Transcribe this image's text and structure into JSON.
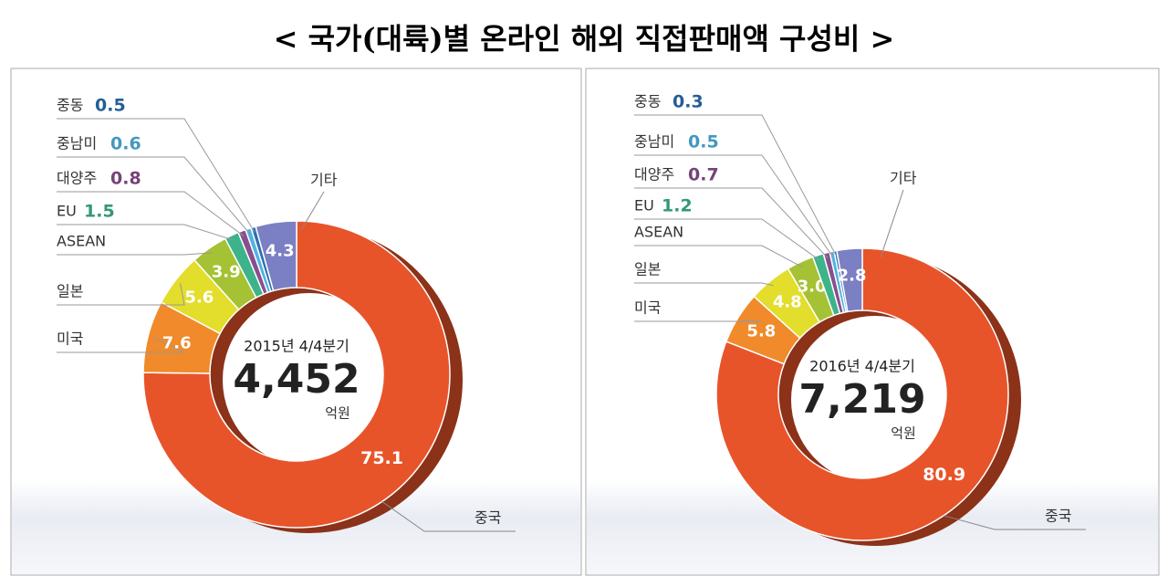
{
  "title": "< 국가(대륙)별 온라인 해외 직접판매액 구성비 >",
  "chart_data": [
    {
      "type": "pie",
      "period": "2015년 4/4분기",
      "total": "4,452",
      "unit": "억원",
      "categories": [
        "중국",
        "미국",
        "일본",
        "ASEAN",
        "EU",
        "대양주",
        "중남미",
        "중동",
        "기타"
      ],
      "values": [
        75.1,
        7.6,
        5.6,
        3.9,
        1.5,
        0.8,
        0.6,
        0.5,
        4.3
      ],
      "value_labels": [
        "75.1",
        "7.6",
        "5.6",
        "3.9",
        "1.5",
        "0.8",
        "0.6",
        "0.5",
        "4.3"
      ],
      "colors": [
        "#e8542a",
        "#f08a2a",
        "#e3dd2c",
        "#a5c234",
        "#3db38a",
        "#8a4e8e",
        "#4fb3e0",
        "#2c6fb0",
        "#7b7fc4"
      ]
    },
    {
      "type": "pie",
      "period": "2016년 4/4분기",
      "total": "7,219",
      "unit": "억원",
      "categories": [
        "중국",
        "미국",
        "일본",
        "ASEAN",
        "EU",
        "대양주",
        "중남미",
        "중동",
        "기타"
      ],
      "values": [
        80.9,
        5.8,
        4.8,
        3.0,
        1.2,
        0.7,
        0.5,
        0.3,
        2.8
      ],
      "value_labels": [
        "80.9",
        "5.8",
        "4.8",
        "3.0",
        "1.2",
        "0.7",
        "0.5",
        "0.3",
        "2.8"
      ],
      "colors": [
        "#e8542a",
        "#f08a2a",
        "#e3dd2c",
        "#a5c234",
        "#3db38a",
        "#8a4e8e",
        "#4fb3e0",
        "#2c6fb0",
        "#7b7fc4"
      ]
    }
  ]
}
